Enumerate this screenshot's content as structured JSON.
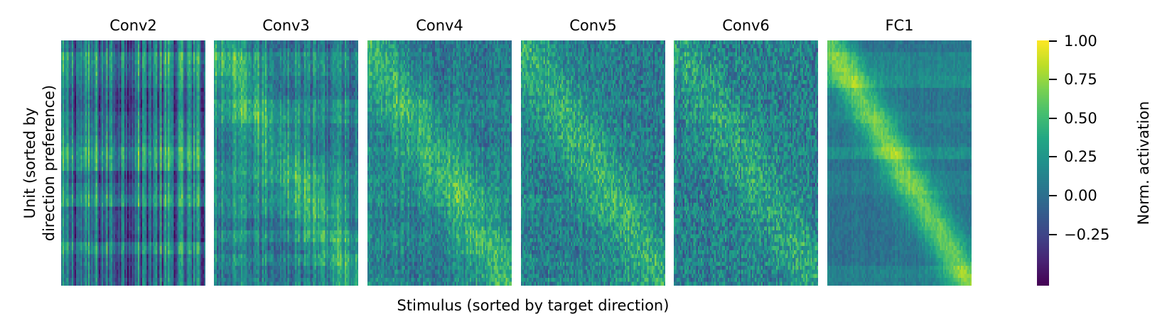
{
  "chart_data": {
    "type": "heatmap",
    "panels": [
      {
        "title": "Conv2",
        "units": 62,
        "stimuli": 96
      },
      {
        "title": "Conv3",
        "units": 62,
        "stimuli": 96
      },
      {
        "title": "Conv4",
        "units": 62,
        "stimuli": 96
      },
      {
        "title": "Conv5",
        "units": 62,
        "stimuli": 96
      },
      {
        "title": "Conv6",
        "units": 62,
        "stimuli": 96
      },
      {
        "title": "FC1",
        "units": 62,
        "stimuli": 96
      }
    ],
    "xlabel": "Stimulus (sorted by target direction)",
    "ylabel": [
      "Unit (sorted by",
      "direction preference)"
    ],
    "colorbar": {
      "label": "Norm. activation",
      "range": [
        -0.45,
        1.0
      ],
      "ticks": [
        1.0,
        0.75,
        0.5,
        0.25,
        0.0,
        -0.25
      ],
      "tick_labels": [
        "1.00",
        "0.75",
        "0.50",
        "0.25",
        "0.00",
        "−0.25"
      ],
      "colormap": "viridis"
    },
    "grid": false,
    "note_visual_structure": ""
  }
}
